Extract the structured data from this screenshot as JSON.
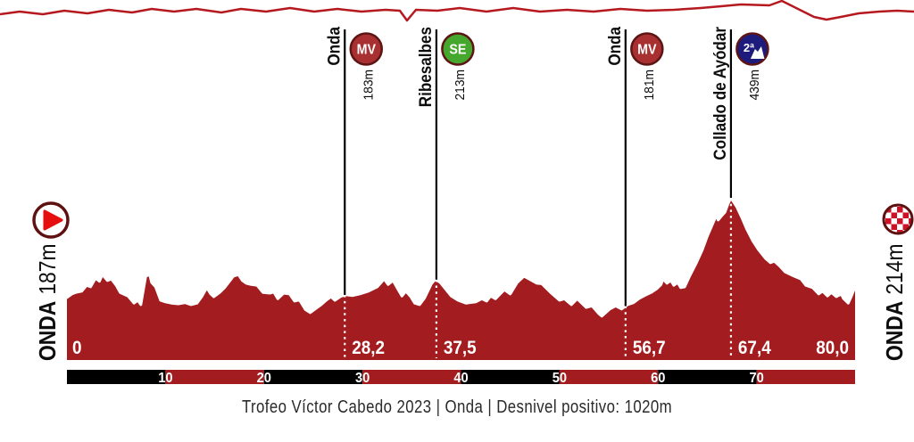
{
  "caption": "Trofeo Víctor Cabedo 2023 | Onda | Desnivel positivo: 1020m",
  "start": {
    "name": "ONDA",
    "elevation": "187m"
  },
  "finish": {
    "name": "ONDA",
    "elevation": "214m"
  },
  "colors": {
    "profile_fill": "#a31c1f",
    "profile_stroke": "#ffffff",
    "marker_line": "#000000",
    "dotted_line": "#ffffff",
    "ring": "#5c1414",
    "skyline": "#b5191f",
    "scale_black": "#000000",
    "scale_red": "#a31c1f",
    "badge": {
      "mv": "#a93030",
      "se": "#46a72e",
      "cat2": "#1d1c7c"
    },
    "start_triangle": "#e60f0f",
    "finish_checker": "#ce1126",
    "label_text": "#0d0d0d",
    "km_label_text": "#ffffff"
  },
  "chart_data": {
    "type": "area",
    "title": "Trofeo Víctor Cabedo 2023 stage elevation profile",
    "x_unit": "km",
    "y_unit": "m",
    "x_range": [
      0,
      80
    ],
    "grid": false,
    "start_point": {
      "km": 0,
      "km_label": "0",
      "location": "ONDA",
      "elevation_label": "187m"
    },
    "end_point": {
      "km": 80,
      "km_label": "80,0",
      "location": "ONDA",
      "elevation_label": "214m"
    },
    "markers": [
      {
        "km": 28.2,
        "km_label": "28,2",
        "name": "Onda",
        "badge_text": "MV",
        "badge_type": "mv",
        "alt_label": "183m"
      },
      {
        "km": 37.5,
        "km_label": "37,5",
        "name": "Ribesalbes",
        "badge_text": "SE",
        "badge_type": "se",
        "alt_label": "213m"
      },
      {
        "km": 56.7,
        "km_label": "56,7",
        "name": "Onda",
        "badge_text": "MV",
        "badge_type": "mv",
        "alt_label": "181m"
      },
      {
        "km": 67.4,
        "km_label": "67,4",
        "name": "Collado de Ayódar",
        "badge_text": "2ª",
        "badge_type": "cat2",
        "alt_label": "439m"
      }
    ],
    "scale_bar": {
      "segment_km": 10,
      "tick_labels": [
        "10",
        "20",
        "30",
        "40",
        "50",
        "60",
        "70"
      ]
    },
    "profile": [
      [
        0,
        187
      ],
      [
        0.5,
        196
      ],
      [
        0.9,
        200
      ],
      [
        1.5,
        203
      ],
      [
        2.0,
        218
      ],
      [
        2.4,
        214
      ],
      [
        2.9,
        236
      ],
      [
        3.3,
        228
      ],
      [
        3.6,
        245
      ],
      [
        4.1,
        230
      ],
      [
        4.5,
        234
      ],
      [
        5.0,
        218
      ],
      [
        5.4,
        200
      ],
      [
        6.2,
        191
      ],
      [
        6.8,
        173
      ],
      [
        7.2,
        180
      ],
      [
        7.5,
        169
      ],
      [
        8.0,
        241
      ],
      [
        8.4,
        245
      ],
      [
        8.6,
        225
      ],
      [
        9.0,
        214
      ],
      [
        9.5,
        180
      ],
      [
        10.0,
        176
      ],
      [
        10.6,
        173
      ],
      [
        11.3,
        171
      ],
      [
        12.0,
        174
      ],
      [
        12.6,
        169
      ],
      [
        13.2,
        173
      ],
      [
        13.7,
        190
      ],
      [
        14.2,
        212
      ],
      [
        14.6,
        196
      ],
      [
        14.9,
        189
      ],
      [
        15.5,
        200
      ],
      [
        16.0,
        212
      ],
      [
        16.5,
        228
      ],
      [
        16.9,
        241
      ],
      [
        17.4,
        245
      ],
      [
        17.8,
        230
      ],
      [
        18.2,
        223
      ],
      [
        18.7,
        220
      ],
      [
        19.3,
        218
      ],
      [
        19.9,
        200
      ],
      [
        20.6,
        198
      ],
      [
        21.0,
        201
      ],
      [
        21.4,
        184
      ],
      [
        22.0,
        198
      ],
      [
        22.6,
        196
      ],
      [
        23.1,
        178
      ],
      [
        23.6,
        181
      ],
      [
        24.2,
        157
      ],
      [
        24.7,
        149
      ],
      [
        25.3,
        160
      ],
      [
        25.8,
        169
      ],
      [
        26.3,
        180
      ],
      [
        26.8,
        189
      ],
      [
        27.2,
        180
      ],
      [
        27.8,
        190
      ],
      [
        28.3,
        194
      ],
      [
        29.0,
        192
      ],
      [
        29.7,
        196
      ],
      [
        30.6,
        203
      ],
      [
        31.5,
        214
      ],
      [
        32.2,
        234
      ],
      [
        32.6,
        220
      ],
      [
        33.1,
        230
      ],
      [
        33.5,
        212
      ],
      [
        34.0,
        191
      ],
      [
        34.4,
        203
      ],
      [
        34.9,
        189
      ],
      [
        35.3,
        173
      ],
      [
        35.8,
        169
      ],
      [
        36.3,
        186
      ],
      [
        37.0,
        222
      ],
      [
        37.4,
        234
      ],
      [
        37.9,
        225
      ],
      [
        39.0,
        191
      ],
      [
        39.7,
        180
      ],
      [
        40.5,
        173
      ],
      [
        41.5,
        176
      ],
      [
        42.1,
        184
      ],
      [
        42.6,
        178
      ],
      [
        43.0,
        191
      ],
      [
        43.5,
        184
      ],
      [
        44.4,
        207
      ],
      [
        45.0,
        196
      ],
      [
        45.7,
        225
      ],
      [
        46.4,
        241
      ],
      [
        46.9,
        234
      ],
      [
        47.7,
        223
      ],
      [
        48.2,
        222
      ],
      [
        49.1,
        200
      ],
      [
        50.0,
        180
      ],
      [
        50.5,
        184
      ],
      [
        51.2,
        169
      ],
      [
        51.8,
        184
      ],
      [
        52.7,
        162
      ],
      [
        53.3,
        166
      ],
      [
        54.0,
        146
      ],
      [
        54.3,
        140
      ],
      [
        55.1,
        158
      ],
      [
        55.7,
        166
      ],
      [
        56.3,
        158
      ],
      [
        56.9,
        169
      ],
      [
        57.5,
        174
      ],
      [
        58.1,
        185
      ],
      [
        58.7,
        193
      ],
      [
        59.3,
        200
      ],
      [
        59.9,
        210
      ],
      [
        60.3,
        220
      ],
      [
        60.5,
        234
      ],
      [
        60.9,
        223
      ],
      [
        61.3,
        230
      ],
      [
        61.6,
        218
      ],
      [
        62.0,
        225
      ],
      [
        62.3,
        212
      ],
      [
        62.7,
        214
      ],
      [
        63.2,
        241
      ],
      [
        63.9,
        275
      ],
      [
        64.5,
        308
      ],
      [
        65.0,
        342
      ],
      [
        65.5,
        371
      ],
      [
        65.9,
        394
      ],
      [
        66.1,
        383
      ],
      [
        66.4,
        392
      ],
      [
        66.8,
        403
      ],
      [
        67.1,
        424
      ],
      [
        67.4,
        439
      ],
      [
        68.0,
        416
      ],
      [
        68.5,
        389
      ],
      [
        69.0,
        360
      ],
      [
        69.6,
        331
      ],
      [
        70.2,
        308
      ],
      [
        70.9,
        286
      ],
      [
        71.4,
        275
      ],
      [
        71.8,
        279
      ],
      [
        72.3,
        268
      ],
      [
        72.9,
        252
      ],
      [
        73.8,
        241
      ],
      [
        74.5,
        234
      ],
      [
        75.0,
        218
      ],
      [
        75.7,
        212
      ],
      [
        76.3,
        196
      ],
      [
        76.7,
        203
      ],
      [
        77.2,
        191
      ],
      [
        77.6,
        200
      ],
      [
        78.1,
        189
      ],
      [
        78.6,
        196
      ],
      [
        78.8,
        185
      ],
      [
        79.3,
        173
      ],
      [
        79.6,
        189
      ],
      [
        80,
        214
      ]
    ]
  }
}
